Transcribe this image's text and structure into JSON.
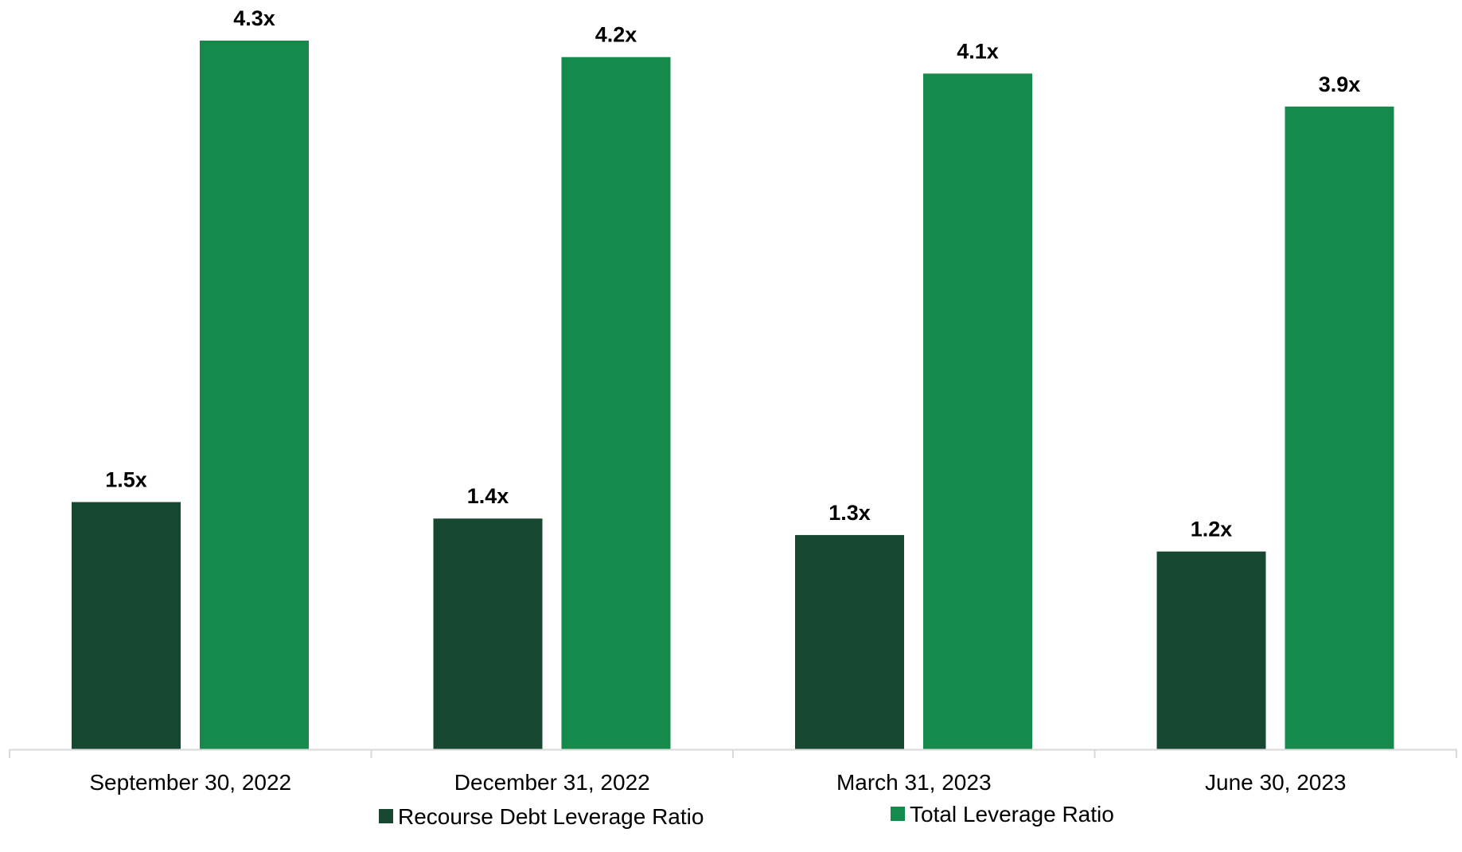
{
  "chart_data": {
    "type": "bar",
    "categories": [
      "September 30, 2022",
      "December 31, 2022",
      "March 31, 2023",
      "June 30, 2023"
    ],
    "series": [
      {
        "name": "Recourse Debt Leverage Ratio",
        "values": [
          1.5,
          1.4,
          1.3,
          1.2
        ],
        "labels": [
          "1.5x",
          "1.4x",
          "1.3x",
          "1.2x"
        ],
        "color": "#184731"
      },
      {
        "name": "Total Leverage Ratio",
        "values": [
          4.3,
          4.2,
          4.1,
          3.9
        ],
        "labels": [
          "4.3x",
          "4.2x",
          "4.1x",
          "3.9x"
        ],
        "color": "#168a4b"
      }
    ],
    "ylim": [
      0,
      4.3
    ],
    "grid": false,
    "legend": "bottom",
    "axis_color": "#d9d9d9"
  }
}
